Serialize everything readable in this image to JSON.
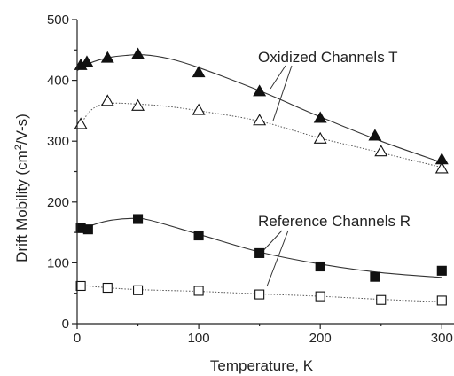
{
  "chart_data": {
    "type": "scatter",
    "title": "",
    "xlabel": "Temperature, K",
    "ylabel_parts": [
      "Drift Mobility (cm",
      "2",
      "/V-s)"
    ],
    "xlim": [
      0,
      310
    ],
    "ylim": [
      0,
      500
    ],
    "xticks": [
      "0",
      "100",
      "200",
      "300"
    ],
    "yticks": [
      "0",
      "100",
      "200",
      "300",
      "400",
      "500"
    ],
    "grid": false,
    "annotations": {
      "oxidized": "Oxidized Channels T",
      "reference": "Reference Channels R"
    },
    "series": [
      {
        "marker": "filled-triangle",
        "fit": "solid",
        "points": [
          [
            3,
            425
          ],
          [
            8,
            430
          ],
          [
            25,
            437
          ],
          [
            50,
            443
          ],
          [
            100,
            413
          ],
          [
            150,
            382
          ],
          [
            200,
            338
          ],
          [
            245,
            309
          ],
          [
            300,
            270
          ]
        ],
        "fit_curve": [
          [
            0,
            416
          ],
          [
            10,
            428
          ],
          [
            25,
            437
          ],
          [
            40,
            441
          ],
          [
            55,
            442
          ],
          [
            75,
            436
          ],
          [
            100,
            421
          ],
          [
            150,
            383
          ],
          [
            200,
            340
          ],
          [
            250,
            300
          ],
          [
            300,
            265
          ]
        ]
      },
      {
        "marker": "open-triangle",
        "fit": "dotted",
        "points": [
          [
            3,
            328
          ],
          [
            25,
            366
          ],
          [
            50,
            358
          ],
          [
            100,
            351
          ],
          [
            150,
            334
          ],
          [
            200,
            304
          ],
          [
            250,
            283
          ],
          [
            300,
            255
          ]
        ],
        "fit_curve": [
          [
            3,
            328
          ],
          [
            12,
            352
          ],
          [
            25,
            362
          ],
          [
            50,
            361
          ],
          [
            75,
            357
          ],
          [
            100,
            350
          ],
          [
            150,
            333
          ],
          [
            200,
            305
          ],
          [
            250,
            281
          ],
          [
            300,
            257
          ]
        ]
      },
      {
        "marker": "filled-square",
        "fit": "solid",
        "points": [
          [
            3,
            157
          ],
          [
            9,
            155
          ],
          [
            50,
            172
          ],
          [
            100,
            145
          ],
          [
            150,
            116
          ],
          [
            200,
            94
          ],
          [
            245,
            77
          ],
          [
            300,
            87
          ]
        ],
        "fit_curve": [
          [
            0,
            150
          ],
          [
            10,
            160
          ],
          [
            25,
            169
          ],
          [
            45,
            173
          ],
          [
            60,
            170
          ],
          [
            100,
            147
          ],
          [
            150,
            118
          ],
          [
            200,
            98
          ],
          [
            250,
            84
          ],
          [
            300,
            76
          ]
        ]
      },
      {
        "marker": "open-square",
        "fit": "dotted",
        "points": [
          [
            3,
            62
          ],
          [
            25,
            59
          ],
          [
            50,
            55
          ],
          [
            100,
            54
          ],
          [
            150,
            48
          ],
          [
            200,
            45
          ],
          [
            250,
            39
          ],
          [
            300,
            38
          ]
        ],
        "fit_curve": [
          [
            3,
            63
          ],
          [
            25,
            59
          ],
          [
            50,
            56
          ],
          [
            100,
            53
          ],
          [
            150,
            49
          ],
          [
            200,
            45
          ],
          [
            250,
            40
          ],
          [
            300,
            36
          ]
        ]
      }
    ]
  }
}
